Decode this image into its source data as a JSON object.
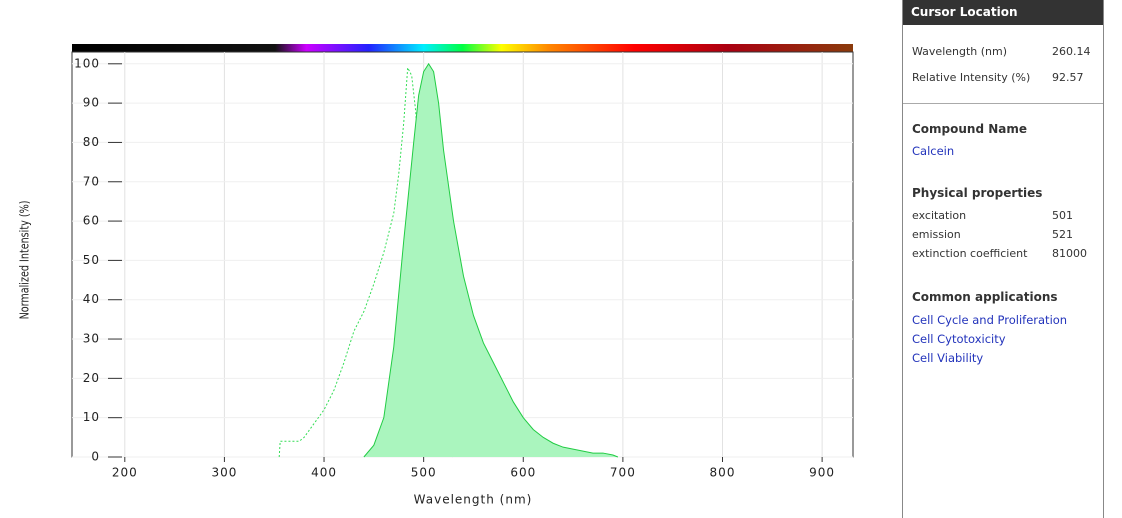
{
  "chart_data": {
    "type": "line",
    "xlabel": "Wavelength (nm)",
    "ylabel": "Normalized Intensity (%)",
    "xlim": [
      147,
      931
    ],
    "ylim": [
      0,
      103
    ],
    "xticks": [
      200,
      300,
      400,
      500,
      600,
      700,
      800,
      900
    ],
    "yticks": [
      0,
      10,
      20,
      30,
      40,
      50,
      60,
      70,
      80,
      90,
      100
    ],
    "grid": true,
    "series": [
      {
        "color": "#33dd55",
        "dashed": true,
        "filled": false,
        "x": [
          355,
          356,
          375,
          380,
          400,
          410,
          420,
          430,
          440,
          450,
          460,
          470,
          475,
          480,
          484,
          488,
          492,
          496,
          500,
          504,
          508,
          512,
          516,
          520,
          530
        ],
        "values": [
          0,
          4,
          4,
          5,
          12,
          17,
          24,
          32,
          37,
          44,
          52,
          62,
          72,
          85,
          99,
          97,
          88,
          70,
          45,
          22,
          10,
          5,
          2,
          1,
          0
        ]
      },
      {
        "color": "#22cc44",
        "fillcolor": "#aaf5be",
        "dashed": false,
        "filled": true,
        "x": [
          440,
          450,
          460,
          470,
          480,
          490,
          495,
          500,
          505,
          510,
          515,
          520,
          530,
          540,
          550,
          560,
          570,
          580,
          590,
          600,
          610,
          620,
          630,
          640,
          650,
          660,
          670,
          680,
          690,
          695
        ],
        "values": [
          0,
          3,
          10,
          28,
          55,
          80,
          92,
          98,
          100,
          98,
          90,
          78,
          60,
          46,
          36,
          29,
          24,
          19,
          14,
          10,
          7,
          5,
          3.5,
          2.5,
          2,
          1.5,
          1,
          1,
          0.5,
          0
        ]
      }
    ]
  },
  "sidebar": {
    "header": "Cursor Location",
    "cursor": [
      {
        "label": "Wavelength (nm)",
        "value": "260.14"
      },
      {
        "label": "Relative Intensity (%)",
        "value": "92.57"
      }
    ],
    "compound": {
      "heading": "Compound Name",
      "name": "Calcein"
    },
    "properties": {
      "heading": "Physical properties",
      "rows": [
        [
          "excitation",
          "501"
        ],
        [
          "emission",
          "521"
        ],
        [
          "extinction coefficient",
          "81000"
        ]
      ]
    },
    "applications": {
      "heading": "Common applications",
      "items": [
        "Cell Cycle and Proliferation",
        "Cell Cytotoxicity",
        "Cell Viability"
      ]
    }
  }
}
